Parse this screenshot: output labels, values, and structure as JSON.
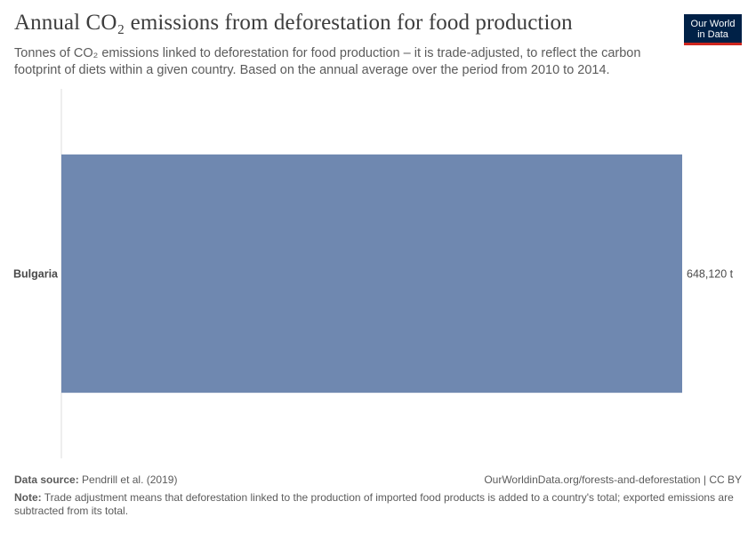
{
  "title": "Annual CO₂ emissions from deforestation for food production",
  "subtitle": "Tonnes of CO₂ emissions linked to deforestation for food production – it is trade-adjusted, to reflect the carbon footprint of diets within a given country. Based on the annual average over the period from 2010 to 2014.",
  "logo": {
    "line1": "Our World",
    "line2": "in Data"
  },
  "footer": {
    "source_label": "Data source:",
    "source_value": "Pendrill et al. (2019)",
    "url": "OurWorldinData.org/forests-and-deforestation | CC BY",
    "note_label": "Note:",
    "note_value": "Trade adjustment means that deforestation linked to the production of imported food products is added to a country's total; exported emissions are subtracted from its total."
  },
  "colors": {
    "bar": "#6f88b0",
    "axis": "#dddddd"
  },
  "chart_data": {
    "type": "bar",
    "orientation": "horizontal",
    "categories": [
      "Bulgaria"
    ],
    "values": [
      648120
    ],
    "value_labels": [
      "648,120 t"
    ],
    "unit": "t",
    "xlim": [
      0,
      648120
    ]
  }
}
